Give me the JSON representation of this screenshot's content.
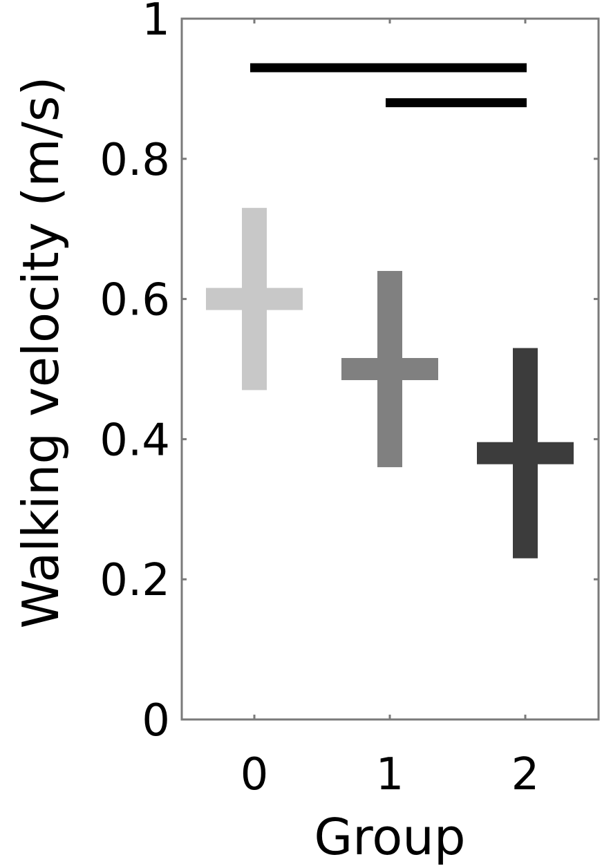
{
  "chart_data": {
    "type": "scatter",
    "xlabel": "Group",
    "ylabel": "Walking velocity (m/s)",
    "xlim": [
      -0.5,
      2.5
    ],
    "ylim": [
      0,
      1
    ],
    "x_ticks": [
      "0",
      "1",
      "2"
    ],
    "y_ticks": [
      "0",
      "0.2",
      "0.4",
      "0.6",
      "0.8",
      "1"
    ],
    "grid": false,
    "series": [
      {
        "x": 0,
        "mean": 0.6,
        "low": 0.47,
        "high": 0.73,
        "color": "#c8c8c8"
      },
      {
        "x": 1,
        "mean": 0.5,
        "low": 0.36,
        "high": 0.64,
        "color": "#808080"
      },
      {
        "x": 2,
        "mean": 0.38,
        "low": 0.23,
        "high": 0.53,
        "color": "#3c3c3c"
      }
    ],
    "significance_bars": [
      {
        "from": 0,
        "to": 2,
        "y": 0.93
      },
      {
        "from": 1,
        "to": 2,
        "y": 0.88
      }
    ]
  }
}
